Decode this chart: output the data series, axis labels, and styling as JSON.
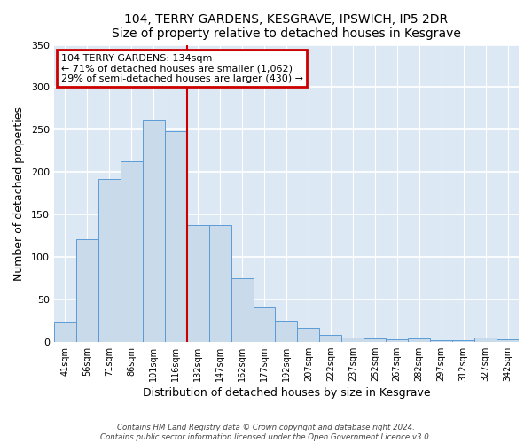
{
  "title": "104, TERRY GARDENS, KESGRAVE, IPSWICH, IP5 2DR",
  "subtitle": "Size of property relative to detached houses in Kesgrave",
  "xlabel": "Distribution of detached houses by size in Kesgrave",
  "ylabel": "Number of detached properties",
  "categories": [
    "41sqm",
    "56sqm",
    "71sqm",
    "86sqm",
    "101sqm",
    "116sqm",
    "132sqm",
    "147sqm",
    "162sqm",
    "177sqm",
    "192sqm",
    "207sqm",
    "222sqm",
    "237sqm",
    "252sqm",
    "267sqm",
    "282sqm",
    "297sqm",
    "312sqm",
    "327sqm",
    "342sqm"
  ],
  "bar_values": [
    24,
    121,
    192,
    213,
    261,
    248,
    138,
    138,
    75,
    40,
    25,
    16,
    8,
    5,
    4,
    3,
    4,
    2,
    2,
    5,
    3
  ],
  "bar_color": "#c9daea",
  "bar_edge_color": "#5b9bd5",
  "reference_line_x": 6,
  "reference_line_color": "#cc0000",
  "annotation_line0": "104 TERRY GARDENS: 134sqm",
  "annotation_line1": "← 71% of detached houses are smaller (1,062)",
  "annotation_line2": "29% of semi-detached houses are larger (430) →",
  "annotation_box_edge_color": "#cc0000",
  "ylim": [
    0,
    350
  ],
  "yticks": [
    0,
    50,
    100,
    150,
    200,
    250,
    300,
    350
  ],
  "footer1": "Contains HM Land Registry data © Crown copyright and database right 2024.",
  "footer2": "Contains public sector information licensed under the Open Government Licence v3.0.",
  "background_color": "#ffffff",
  "plot_bg_color": "#dce9f5"
}
